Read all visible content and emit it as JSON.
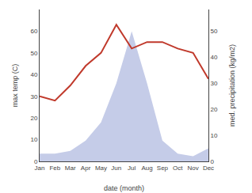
{
  "chart_data": {
    "type": "line",
    "categories": [
      "Jan",
      "Feb",
      "Mar",
      "Apr",
      "May",
      "Jun",
      "Jul",
      "Aug",
      "Sep",
      "Oct",
      "Nov",
      "Dec"
    ],
    "xlabel": "date (month)",
    "ylabel": "max temp (C)",
    "y2label": "med. precipitation (kg/m2)",
    "series": [
      {
        "type": "area",
        "axis": "y2",
        "color": "#c5cce8",
        "values": [
          3,
          3,
          4,
          8,
          15,
          30,
          50,
          30,
          8,
          3,
          2,
          5
        ]
      },
      {
        "type": "line",
        "color": "#c0392b",
        "values": [
          30,
          28,
          35,
          44,
          50,
          63,
          52,
          55,
          55,
          52,
          50,
          38
        ]
      }
    ],
    "ylim": [
      0,
      70
    ],
    "yticks": [
      0,
      10,
      20,
      30,
      40,
      50,
      60
    ],
    "y2lim": [
      0,
      58.33
    ],
    "y2ticks": [
      0,
      10,
      20,
      30,
      40,
      50
    ],
    "grid": false
  }
}
